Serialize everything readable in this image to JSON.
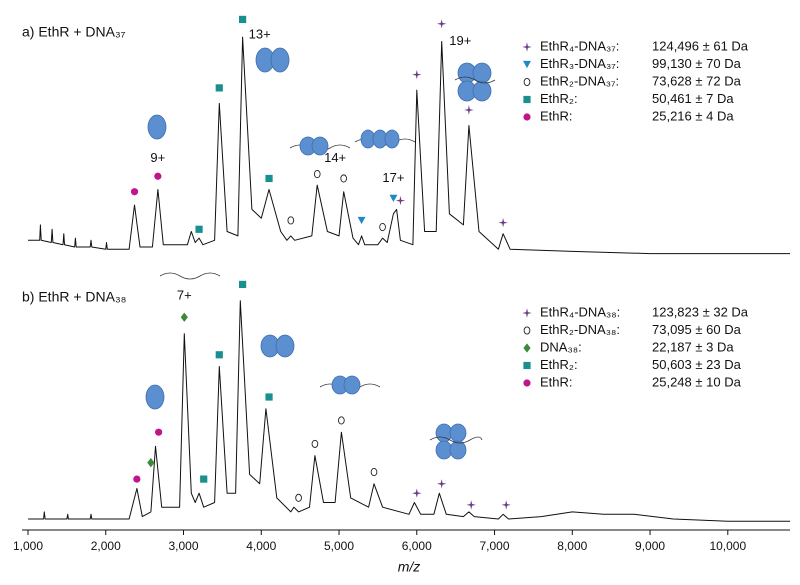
{
  "chart_data": [
    {
      "type": "line",
      "title": "a) EthR + DNA₃₇",
      "color": "#111111",
      "xlim": [
        1000,
        10800
      ],
      "ylim": [
        0,
        110
      ],
      "x": [
        1000,
        1150,
        1160,
        1170,
        1300,
        1310,
        1320,
        1450,
        1460,
        1470,
        1600,
        1610,
        1620,
        1800,
        1810,
        1820,
        2000,
        2010,
        2020,
        2300,
        2370,
        2440,
        2600,
        2670,
        2740,
        3050,
        3100,
        3150,
        3200,
        3250,
        3400,
        3460,
        3560,
        3700,
        3760,
        3880,
        4000,
        4100,
        4250,
        4330,
        4380,
        4430,
        4650,
        4720,
        4850,
        5000,
        5060,
        5180,
        5250,
        5290,
        5330,
        5500,
        5560,
        5620,
        5700,
        5740,
        5790,
        5950,
        6000,
        6100,
        6250,
        6320,
        6420,
        6600,
        6670,
        6800,
        7050,
        7110,
        7200,
        8000,
        9000,
        10000,
        10800
      ],
      "values": [
        8,
        8,
        15,
        8,
        7,
        13,
        7,
        6,
        11,
        6,
        5,
        9,
        5,
        5,
        8,
        5,
        4,
        7,
        4,
        4,
        24,
        5,
        5,
        31,
        6,
        6,
        12,
        7,
        9,
        6,
        8,
        70,
        12,
        10,
        100,
        22,
        18,
        31,
        12,
        8,
        10,
        8,
        10,
        33,
        12,
        10,
        30,
        9,
        6,
        10,
        6,
        6,
        9,
        7,
        20,
        22,
        8,
        6,
        76,
        12,
        12,
        98,
        20,
        15,
        60,
        12,
        4,
        11,
        4,
        3,
        2,
        2,
        2
      ],
      "legend": [
        {
          "symbol": "star",
          "color": "#6a3d8a",
          "label": "EthR₄-DNA₃₇:",
          "mass": "124,496 ± 61 Da"
        },
        {
          "symbol": "triangle",
          "color": "#1e88c8",
          "label": "EthR₃-DNA₃₇:",
          "mass": "99,130 ± 70 Da"
        },
        {
          "symbol": "open-circle",
          "color": "#222222",
          "label": "EthR₂-DNA₃₇:",
          "mass": "73,628 ± 72 Da"
        },
        {
          "symbol": "square",
          "color": "#1a8f8f",
          "label": "EthR₂:",
          "mass": "50,461 ± 7 Da"
        },
        {
          "symbol": "circle",
          "color": "#c0168c",
          "label": "EthR:",
          "mass": "25,216 ± 4 Da"
        }
      ],
      "markers": [
        {
          "species": 4,
          "x": 2370,
          "y": 30
        },
        {
          "species": 4,
          "x": 2670,
          "y": 37
        },
        {
          "species": 3,
          "x": 3200,
          "y": 13
        },
        {
          "species": 3,
          "x": 3460,
          "y": 77
        },
        {
          "species": 3,
          "x": 3760,
          "y": 108
        },
        {
          "species": 3,
          "x": 4100,
          "y": 36
        },
        {
          "species": 2,
          "x": 4380,
          "y": 17
        },
        {
          "species": 2,
          "x": 4720,
          "y": 38
        },
        {
          "species": 2,
          "x": 5060,
          "y": 36
        },
        {
          "species": 2,
          "x": 5560,
          "y": 14
        },
        {
          "species": 1,
          "x": 5290,
          "y": 17
        },
        {
          "species": 1,
          "x": 5700,
          "y": 27
        },
        {
          "species": 0,
          "x": 5790,
          "y": 26
        },
        {
          "species": 0,
          "x": 6000,
          "y": 83
        },
        {
          "species": 0,
          "x": 6320,
          "y": 106
        },
        {
          "species": 0,
          "x": 6670,
          "y": 67
        },
        {
          "species": 0,
          "x": 7110,
          "y": 16
        }
      ],
      "annotations": [
        {
          "text": "9+",
          "x": 2670,
          "y": 45,
          "color": "#c0168c"
        },
        {
          "text": "13+",
          "x": 3980,
          "y": 101,
          "color": "#1a8f8f"
        },
        {
          "text": "14+",
          "x": 4950,
          "y": 45,
          "color": "#222222"
        },
        {
          "text": "17+",
          "x": 5700,
          "y": 36,
          "color": "#1e88c8"
        },
        {
          "text": "19+",
          "x": 6560,
          "y": 98,
          "color": "#6a3d8a"
        }
      ]
    },
    {
      "type": "line",
      "title": "b) EthR + DNA₃₈",
      "color": "#111111",
      "xlim": [
        1000,
        10800
      ],
      "ylim": [
        0,
        110
      ],
      "xlabel": "m/z",
      "xticks": [
        {
          "value": 1000,
          "label": "1,000"
        },
        {
          "value": 2000,
          "label": "2,000"
        },
        {
          "value": 3000,
          "label": "3,000"
        },
        {
          "value": 4000,
          "label": "4,000"
        },
        {
          "value": 5000,
          "label": "5,000"
        },
        {
          "value": 6000,
          "label": "6,000"
        },
        {
          "value": 7000,
          "label": "7,000"
        },
        {
          "value": 8000,
          "label": "8,000"
        },
        {
          "value": 9000,
          "label": "9,000"
        },
        {
          "value": 10000,
          "label": "10,000"
        }
      ],
      "x": [
        1000,
        1200,
        1210,
        1220,
        1500,
        1510,
        1520,
        1800,
        1810,
        1820,
        2300,
        2400,
        2470,
        2580,
        2640,
        2720,
        2950,
        3010,
        3100,
        3150,
        3200,
        3260,
        3400,
        3460,
        3560,
        3670,
        3730,
        3850,
        3980,
        4060,
        4200,
        4380,
        4420,
        4480,
        4620,
        4690,
        4800,
        4950,
        5030,
        5150,
        5380,
        5450,
        5560,
        5900,
        5970,
        6050,
        6220,
        6290,
        6380,
        6600,
        6670,
        6740,
        7050,
        7110,
        7180,
        7600,
        8000,
        8400,
        8800,
        9300,
        10000,
        10800
      ],
      "values": [
        3,
        3,
        6,
        3,
        3,
        5,
        3,
        3,
        5,
        3,
        3,
        16,
        4,
        6,
        34,
        8,
        8,
        82,
        14,
        10,
        14,
        8,
        10,
        68,
        14,
        14,
        96,
        22,
        18,
        50,
        12,
        6,
        8,
        6,
        8,
        30,
        10,
        10,
        40,
        12,
        8,
        18,
        8,
        5,
        10,
        5,
        5,
        14,
        5,
        4,
        6,
        4,
        3,
        5,
        3,
        4,
        6,
        5,
        5,
        3,
        2,
        2
      ],
      "legend": [
        {
          "symbol": "star",
          "color": "#6a3d8a",
          "label": "EthR₄-DNA₃₈:",
          "mass": "123,823 ± 32 Da"
        },
        {
          "symbol": "open-circle",
          "color": "#222222",
          "label": "EthR₂-DNA₃₈:",
          "mass": "73,095 ± 60 Da"
        },
        {
          "symbol": "diamond",
          "color": "#3a8a3a",
          "label": "DNA₃₈:",
          "mass": "22,187 ± 3 Da"
        },
        {
          "symbol": "square",
          "color": "#1a8f8f",
          "label": "EthR₂:",
          "mass": "50,603 ± 23 Da"
        },
        {
          "symbol": "circle",
          "color": "#c0168c",
          "label": "EthR:",
          "mass": "25,248 ± 10 Da"
        }
      ],
      "markers": [
        {
          "species": 4,
          "x": 2400,
          "y": 20
        },
        {
          "species": 4,
          "x": 2680,
          "y": 40
        },
        {
          "species": 2,
          "x": 2580,
          "y": 27
        },
        {
          "species": 2,
          "x": 3010,
          "y": 89
        },
        {
          "species": 3,
          "x": 3260,
          "y": 20
        },
        {
          "species": 3,
          "x": 3460,
          "y": 73
        },
        {
          "species": 3,
          "x": 3760,
          "y": 103
        },
        {
          "species": 3,
          "x": 4100,
          "y": 55
        },
        {
          "species": 1,
          "x": 4480,
          "y": 12
        },
        {
          "species": 1,
          "x": 4690,
          "y": 35
        },
        {
          "species": 1,
          "x": 5030,
          "y": 45
        },
        {
          "species": 1,
          "x": 5450,
          "y": 23
        },
        {
          "species": 0,
          "x": 6000,
          "y": 14
        },
        {
          "species": 0,
          "x": 6320,
          "y": 18
        },
        {
          "species": 0,
          "x": 6700,
          "y": 9
        },
        {
          "species": 0,
          "x": 7150,
          "y": 9
        }
      ],
      "annotations": [
        {
          "text": "7+",
          "x": 3010,
          "y": 98,
          "color": "#3a8a3a"
        }
      ]
    }
  ]
}
